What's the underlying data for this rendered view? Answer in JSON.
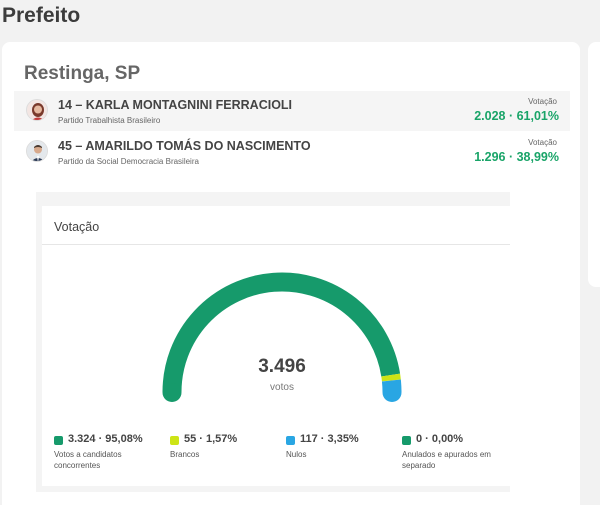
{
  "page": {
    "title": "Prefeito"
  },
  "location": {
    "name": "Restinga, SP"
  },
  "candidates": [
    {
      "number_name": "14 – KARLA MONTAGNINI FERRACIOLI",
      "party": "Partido Trabalhista Brasileiro",
      "vote_label": "Votação",
      "votes": "2.028 · 61,01%"
    },
    {
      "number_name": "45 – AMARILDO TOMÁS DO NASCIMENTO",
      "party": "Partido da Social Democracia Brasileira",
      "vote_label": "Votação",
      "votes": "1.296 · 38,99%"
    }
  ],
  "votacao": {
    "title": "Votação",
    "total": "3.496",
    "unit": "votos",
    "legend": [
      {
        "value": "3.324 · 95,08%",
        "label": "Votos a candidatos concorrentes",
        "color": "#169a6b",
        "share": 0.9508
      },
      {
        "value": "55 · 1,57%",
        "label": "Brancos",
        "color": "#cde416",
        "share": 0.0157
      },
      {
        "value": "117 · 3,35%",
        "label": "Nulos",
        "color": "#29a6e3",
        "share": 0.0335
      },
      {
        "value": "0 · 0,00%",
        "label": "Anulados e apurados em separado",
        "color": "#169a6b",
        "share": 0.0
      }
    ]
  }
}
